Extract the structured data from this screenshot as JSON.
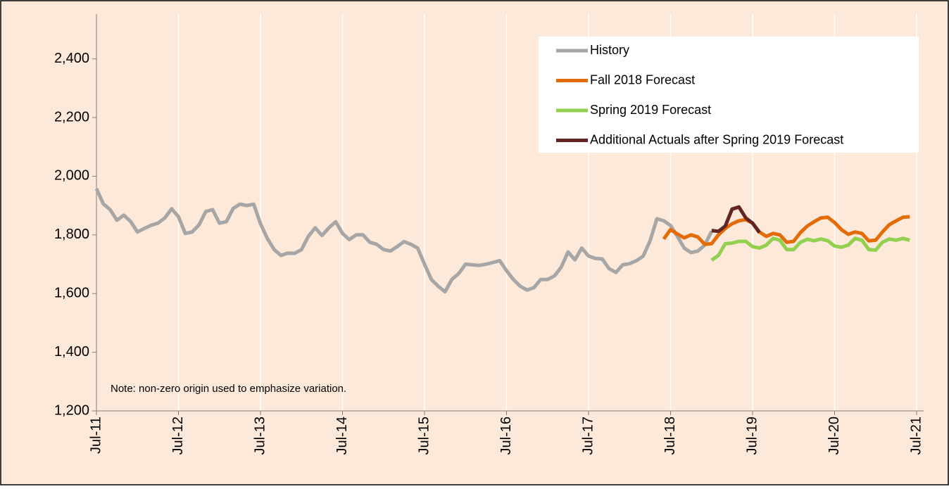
{
  "chart_data": {
    "type": "line",
    "annotation": "Note: non-zero origin used to emphasize variation.",
    "categories": [
      "Jul-11",
      null,
      null,
      null,
      null,
      null,
      null,
      null,
      null,
      null,
      null,
      null,
      "Jul-12",
      null,
      null,
      null,
      null,
      null,
      null,
      null,
      null,
      null,
      null,
      null,
      "Jul-13",
      null,
      null,
      null,
      null,
      null,
      null,
      null,
      null,
      null,
      null,
      null,
      "Jul-14",
      null,
      null,
      null,
      null,
      null,
      null,
      null,
      null,
      null,
      null,
      null,
      "Jul-15",
      null,
      null,
      null,
      null,
      null,
      null,
      null,
      null,
      null,
      null,
      null,
      "Jul-16",
      null,
      null,
      null,
      null,
      null,
      null,
      null,
      null,
      null,
      null,
      null,
      "Jul-17",
      null,
      null,
      null,
      null,
      null,
      null,
      null,
      null,
      null,
      null,
      null,
      "Jul-18",
      null,
      null,
      null,
      null,
      null,
      null,
      null,
      null,
      null,
      null,
      null,
      "Jul-19",
      null,
      null,
      null,
      null,
      null,
      null,
      null,
      null,
      null,
      null,
      null,
      "Jul-20",
      null,
      null,
      null,
      null,
      null,
      null,
      null,
      null,
      null,
      null,
      null,
      "Jul-21"
    ],
    "series": [
      {
        "name": "History",
        "color": "#a6a6a6",
        "values": [
          1958,
          1906,
          1886,
          1850,
          1867,
          1846,
          1810,
          1822,
          1833,
          1840,
          1858,
          1889,
          1862,
          1805,
          1810,
          1834,
          1880,
          1886,
          1840,
          1845,
          1890,
          1905,
          1900,
          1905,
          1838,
          1788,
          1750,
          1730,
          1738,
          1737,
          1750,
          1795,
          1824,
          1798,
          1824,
          1845,
          1805,
          1784,
          1800,
          1800,
          1775,
          1768,
          1750,
          1745,
          1760,
          1777,
          1768,
          1755,
          1700,
          1648,
          1625,
          1606,
          1648,
          1668,
          1700,
          1698,
          1696,
          1700,
          1706,
          1712,
          1678,
          1648,
          1625,
          1612,
          1620,
          1648,
          1648,
          1660,
          1690,
          1742,
          1715,
          1755,
          1728,
          1720,
          1718,
          1685,
          1672,
          1698,
          1702,
          1712,
          1728,
          1780,
          1855,
          1848,
          1832,
          1795,
          1755,
          1740,
          1745,
          1765,
          1812,
          null,
          null,
          null,
          null,
          null,
          null,
          null,
          null,
          null,
          null,
          null,
          null,
          null,
          null,
          null,
          null,
          null,
          null,
          null,
          null,
          null,
          null,
          null,
          null,
          null,
          null,
          null,
          null,
          null,
          null
        ]
      },
      {
        "name": "Fall 2018 Forecast",
        "color": "#e36c09",
        "values": [
          null,
          null,
          null,
          null,
          null,
          null,
          null,
          null,
          null,
          null,
          null,
          null,
          null,
          null,
          null,
          null,
          null,
          null,
          null,
          null,
          null,
          null,
          null,
          null,
          null,
          null,
          null,
          null,
          null,
          null,
          null,
          null,
          null,
          null,
          null,
          null,
          null,
          null,
          null,
          null,
          null,
          null,
          null,
          null,
          null,
          null,
          null,
          null,
          null,
          null,
          null,
          null,
          null,
          null,
          null,
          null,
          null,
          null,
          null,
          null,
          null,
          null,
          null,
          null,
          null,
          null,
          null,
          null,
          null,
          null,
          null,
          null,
          null,
          null,
          null,
          null,
          null,
          null,
          null,
          null,
          null,
          null,
          null,
          1786,
          1818,
          1803,
          1790,
          1800,
          1793,
          1768,
          1770,
          1800,
          1822,
          1838,
          1848,
          1852,
          1840,
          1810,
          1795,
          1805,
          1800,
          1775,
          1778,
          1808,
          1830,
          1845,
          1858,
          1860,
          1842,
          1818,
          1802,
          1810,
          1805,
          1780,
          1782,
          1810,
          1835,
          1848,
          1860,
          1862,
          null
        ]
      },
      {
        "name": "Spring 2019 Forecast",
        "color": "#92d050",
        "values": [
          null,
          null,
          null,
          null,
          null,
          null,
          null,
          null,
          null,
          null,
          null,
          null,
          null,
          null,
          null,
          null,
          null,
          null,
          null,
          null,
          null,
          null,
          null,
          null,
          null,
          null,
          null,
          null,
          null,
          null,
          null,
          null,
          null,
          null,
          null,
          null,
          null,
          null,
          null,
          null,
          null,
          null,
          null,
          null,
          null,
          null,
          null,
          null,
          null,
          null,
          null,
          null,
          null,
          null,
          null,
          null,
          null,
          null,
          null,
          null,
          null,
          null,
          null,
          null,
          null,
          null,
          null,
          null,
          null,
          null,
          null,
          null,
          null,
          null,
          null,
          null,
          null,
          null,
          null,
          null,
          null,
          null,
          null,
          null,
          null,
          null,
          null,
          null,
          null,
          null,
          1714,
          1730,
          1770,
          1772,
          1778,
          1778,
          1760,
          1755,
          1765,
          1788,
          1782,
          1750,
          1750,
          1775,
          1785,
          1780,
          1786,
          1780,
          1762,
          1758,
          1765,
          1788,
          1782,
          1750,
          1748,
          1775,
          1786,
          1782,
          1788,
          1782,
          null
        ]
      },
      {
        "name": "Additional Actuals after Spring 2019 Forecast",
        "color": "#632523",
        "values": [
          null,
          null,
          null,
          null,
          null,
          null,
          null,
          null,
          null,
          null,
          null,
          null,
          null,
          null,
          null,
          null,
          null,
          null,
          null,
          null,
          null,
          null,
          null,
          null,
          null,
          null,
          null,
          null,
          null,
          null,
          null,
          null,
          null,
          null,
          null,
          null,
          null,
          null,
          null,
          null,
          null,
          null,
          null,
          null,
          null,
          null,
          null,
          null,
          null,
          null,
          null,
          null,
          null,
          null,
          null,
          null,
          null,
          null,
          null,
          null,
          null,
          null,
          null,
          null,
          null,
          null,
          null,
          null,
          null,
          null,
          null,
          null,
          null,
          null,
          null,
          null,
          null,
          null,
          null,
          null,
          null,
          null,
          null,
          null,
          null,
          null,
          null,
          null,
          null,
          null,
          1815,
          1812,
          1830,
          1888,
          1895,
          1858,
          1840,
          1808,
          null,
          null,
          null,
          null,
          null,
          null,
          null,
          null,
          null,
          null,
          null,
          null,
          null,
          null,
          null,
          null,
          null,
          null,
          null,
          null,
          null,
          null,
          null
        ]
      }
    ],
    "ylim": [
      1200,
      2500
    ],
    "yticks": [
      {
        "value": 1200,
        "label": "1,200"
      },
      {
        "value": 1400,
        "label": "1,400"
      },
      {
        "value": 1600,
        "label": "1,600"
      },
      {
        "value": 1800,
        "label": "1,800"
      },
      {
        "value": 2000,
        "label": "2,000"
      },
      {
        "value": 2200,
        "label": "2,200"
      },
      {
        "value": 2400,
        "label": "2,400"
      }
    ],
    "grid": true,
    "legend": "top-right"
  }
}
